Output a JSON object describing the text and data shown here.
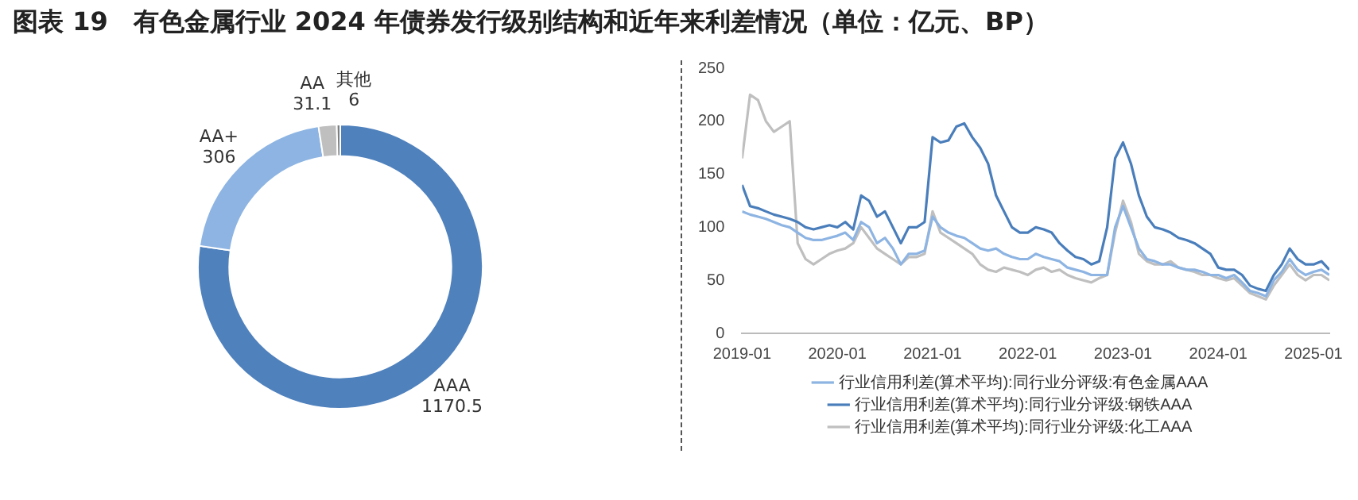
{
  "chart_data": [
    {
      "type": "donut",
      "title": "图表 19　有色金属行业 2024 年债券发行级别结构和近年来利差情况（单位：亿元、BP）",
      "categories": [
        "AAA",
        "AA+",
        "AA",
        "其他"
      ],
      "values": [
        1170.5,
        306,
        31.1,
        6
      ],
      "colors": [
        "#4f81bd",
        "#8db4e2",
        "#bfbfbf",
        "#7f7f7f"
      ],
      "data_labels": true,
      "legend": false
    },
    {
      "type": "line",
      "x": [
        "2019-01",
        "2019-02",
        "2019-03",
        "2019-04",
        "2019-05",
        "2019-06",
        "2019-07",
        "2019-08",
        "2019-09",
        "2019-10",
        "2019-11",
        "2019-12",
        "2020-01",
        "2020-02",
        "2020-03",
        "2020-04",
        "2020-05",
        "2020-06",
        "2020-07",
        "2020-08",
        "2020-09",
        "2020-10",
        "2020-11",
        "2020-12",
        "2021-01",
        "2021-02",
        "2021-03",
        "2021-04",
        "2021-05",
        "2021-06",
        "2021-07",
        "2021-08",
        "2021-09",
        "2021-10",
        "2021-11",
        "2021-12",
        "2022-01",
        "2022-02",
        "2022-03",
        "2022-04",
        "2022-05",
        "2022-06",
        "2022-07",
        "2022-08",
        "2022-09",
        "2022-10",
        "2022-11",
        "2022-12",
        "2023-01",
        "2023-02",
        "2023-03",
        "2023-04",
        "2023-05",
        "2023-06",
        "2023-07",
        "2023-08",
        "2023-09",
        "2023-10",
        "2023-11",
        "2023-12",
        "2024-01",
        "2024-02",
        "2024-03",
        "2024-04",
        "2024-05",
        "2024-06",
        "2024-07",
        "2024-08",
        "2024-09",
        "2024-10",
        "2024-11",
        "2024-12",
        "2025-01",
        "2025-02",
        "2025-03"
      ],
      "series": [
        {
          "name": "行业信用利差(算术平均):同行业分评级:有色金属AAA",
          "color": "#8db4e2",
          "values": [
            115,
            112,
            110,
            108,
            105,
            102,
            100,
            95,
            90,
            88,
            88,
            90,
            92,
            95,
            88,
            105,
            100,
            85,
            90,
            80,
            65,
            75,
            75,
            78,
            110,
            100,
            95,
            92,
            90,
            85,
            80,
            78,
            80,
            75,
            72,
            70,
            70,
            75,
            72,
            70,
            68,
            62,
            60,
            58,
            55,
            55,
            55,
            100,
            120,
            100,
            80,
            70,
            68,
            65,
            65,
            62,
            60,
            60,
            58,
            55,
            55,
            52,
            55,
            48,
            40,
            38,
            35,
            50,
            58,
            70,
            60,
            55,
            58,
            60,
            55
          ]
        },
        {
          "name": "行业信用利差(算术平均):同行业分评级:钢铁AAA",
          "color": "#4a7ebb",
          "values": [
            140,
            120,
            118,
            115,
            112,
            110,
            108,
            105,
            100,
            98,
            100,
            102,
            100,
            105,
            98,
            130,
            125,
            110,
            115,
            100,
            85,
            100,
            100,
            105,
            185,
            180,
            182,
            195,
            198,
            185,
            175,
            160,
            130,
            115,
            100,
            95,
            95,
            100,
            98,
            95,
            85,
            78,
            72,
            70,
            65,
            68,
            100,
            165,
            180,
            160,
            130,
            110,
            100,
            98,
            95,
            90,
            88,
            85,
            80,
            75,
            62,
            60,
            60,
            55,
            45,
            42,
            40,
            55,
            65,
            80,
            70,
            65,
            65,
            68,
            60
          ]
        },
        {
          "name": "行业信用利差(算术平均):同行业分评级:化工AAA",
          "color": "#bfbfbf",
          "values": [
            165,
            225,
            220,
            200,
            190,
            195,
            200,
            85,
            70,
            65,
            70,
            75,
            78,
            80,
            85,
            100,
            90,
            80,
            75,
            70,
            65,
            72,
            72,
            75,
            115,
            95,
            90,
            85,
            80,
            75,
            65,
            60,
            58,
            62,
            60,
            58,
            55,
            60,
            62,
            58,
            60,
            55,
            52,
            50,
            48,
            52,
            55,
            95,
            125,
            105,
            75,
            68,
            65,
            65,
            68,
            62,
            60,
            58,
            55,
            55,
            52,
            50,
            52,
            45,
            38,
            35,
            32,
            45,
            55,
            65,
            55,
            50,
            55,
            55,
            50
          ]
        }
      ],
      "xlim": [
        "2019-01",
        "2025-03"
      ],
      "xticks": [
        "2019-01",
        "2020-01",
        "2021-01",
        "2022-01",
        "2023-01",
        "2024-01",
        "2025-01"
      ],
      "ylim": [
        0,
        250
      ],
      "yticks": [
        0,
        50,
        100,
        150,
        200,
        250
      ],
      "grid": false,
      "legend": "bottom",
      "marker": "none",
      "line_style": "solid"
    }
  ]
}
